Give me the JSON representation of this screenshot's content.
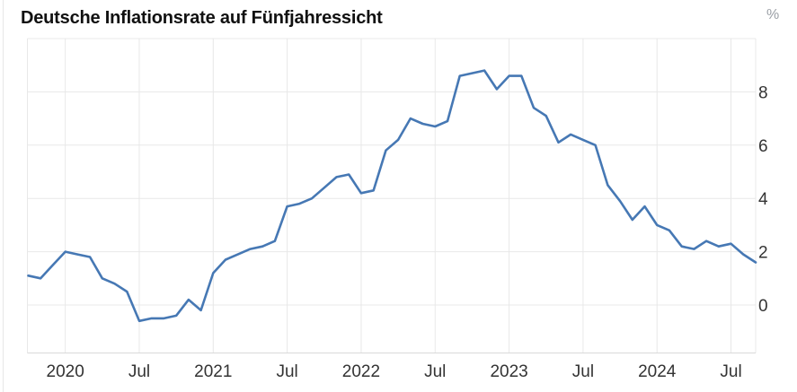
{
  "page": {
    "title": "Deutsche Inflationsrate auf Fünfjahressicht",
    "unit_label": "%"
  },
  "chart_data": {
    "type": "line",
    "title": "Deutsche Inflationsrate auf Fünfjahressicht",
    "xlabel": "",
    "ylabel": "%",
    "grid": true,
    "legend": "none",
    "ylim": [
      -1.8,
      10
    ],
    "y_grid_values": [
      0,
      2,
      4,
      6,
      8,
      10
    ],
    "y_tick_values": [
      0,
      2,
      4,
      6,
      8
    ],
    "y_tick_labels": [
      "0",
      "2",
      "4",
      "6",
      "8"
    ],
    "x_tick_labels": [
      "2020",
      "Jul",
      "2021",
      "Jul",
      "2022",
      "Jul",
      "2023",
      "Jul",
      "2024",
      "Jul"
    ],
    "x_tick_month_indices": [
      3,
      9,
      15,
      21,
      27,
      33,
      39,
      45,
      51,
      57
    ],
    "colors": {
      "line": "#4678b4",
      "grid": "#e8e8e8",
      "axis": "#d9d9d9",
      "tick_text": "#333333",
      "unit_text": "#9a9fa5"
    },
    "series": [
      {
        "name": "Inflationsrate",
        "months": [
          "2019-10",
          "2019-11",
          "2019-12",
          "2020-01",
          "2020-02",
          "2020-03",
          "2020-04",
          "2020-05",
          "2020-06",
          "2020-07",
          "2020-08",
          "2020-09",
          "2020-10",
          "2020-11",
          "2020-12",
          "2021-01",
          "2021-02",
          "2021-03",
          "2021-04",
          "2021-05",
          "2021-06",
          "2021-07",
          "2021-08",
          "2021-09",
          "2021-10",
          "2021-11",
          "2021-12",
          "2022-01",
          "2022-02",
          "2022-03",
          "2022-04",
          "2022-05",
          "2022-06",
          "2022-07",
          "2022-08",
          "2022-09",
          "2022-10",
          "2022-11",
          "2022-12",
          "2023-01",
          "2023-02",
          "2023-03",
          "2023-04",
          "2023-05",
          "2023-06",
          "2023-07",
          "2023-08",
          "2023-09",
          "2023-10",
          "2023-11",
          "2023-12",
          "2024-01",
          "2024-02",
          "2024-03",
          "2024-04",
          "2024-05",
          "2024-06",
          "2024-07",
          "2024-08",
          "2024-09"
        ],
        "values": [
          1.1,
          1.0,
          1.5,
          2.0,
          1.9,
          1.8,
          1.0,
          0.8,
          0.5,
          -0.6,
          -0.5,
          -0.5,
          -0.4,
          0.2,
          -0.2,
          1.2,
          1.7,
          1.9,
          2.1,
          2.2,
          2.4,
          3.7,
          3.8,
          4.0,
          4.4,
          4.8,
          4.9,
          4.2,
          4.3,
          5.8,
          6.2,
          7.0,
          6.8,
          6.7,
          6.9,
          8.6,
          8.7,
          8.8,
          8.1,
          8.6,
          8.6,
          7.4,
          7.1,
          6.1,
          6.4,
          6.2,
          6.0,
          4.5,
          3.9,
          3.2,
          3.7,
          3.0,
          2.8,
          2.2,
          2.1,
          2.4,
          2.2,
          2.3,
          1.9,
          1.6
        ]
      }
    ]
  }
}
